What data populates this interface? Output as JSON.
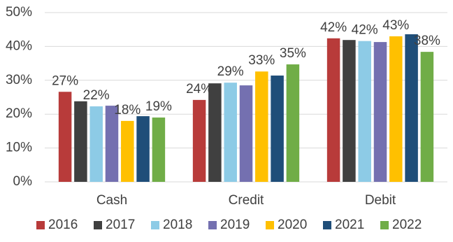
{
  "chart_data": {
    "type": "bar",
    "categories": [
      "Cash",
      "Credit",
      "Debit"
    ],
    "series": [
      {
        "name": "2016",
        "color": "#b83b3a",
        "values": [
          26.6,
          24.2,
          42.4
        ],
        "value_labels": [
          "27%",
          "24%",
          "42%"
        ]
      },
      {
        "name": "2017",
        "color": "#404040",
        "values": [
          23.8,
          29.1,
          41.9
        ]
      },
      {
        "name": "2018",
        "color": "#8dcbe6",
        "values": [
          22.3,
          29.3,
          41.6
        ],
        "value_labels": [
          "22%",
          "29%",
          "42%"
        ]
      },
      {
        "name": "2019",
        "color": "#7470b0",
        "values": [
          22.5,
          28.5,
          41.3
        ]
      },
      {
        "name": "2020",
        "color": "#ffc000",
        "values": [
          18.0,
          32.6,
          43.0
        ],
        "value_labels": [
          "18%",
          "33%",
          "43%"
        ]
      },
      {
        "name": "2021",
        "color": "#1f4e79",
        "values": [
          19.4,
          31.4,
          43.6
        ]
      },
      {
        "name": "2022",
        "color": "#70ad47",
        "values": [
          19.0,
          34.7,
          38.4
        ],
        "value_labels": [
          "19%",
          "35%",
          "38%"
        ]
      }
    ],
    "ylim": [
      0,
      50
    ],
    "yticks": [
      {
        "value": 0,
        "label": "0%"
      },
      {
        "value": 10,
        "label": "10%"
      },
      {
        "value": 20,
        "label": "20%"
      },
      {
        "value": 30,
        "label": "30%"
      },
      {
        "value": 40,
        "label": "40%"
      },
      {
        "value": 50,
        "label": "50%"
      }
    ],
    "grid": true,
    "legend": "bottom"
  }
}
